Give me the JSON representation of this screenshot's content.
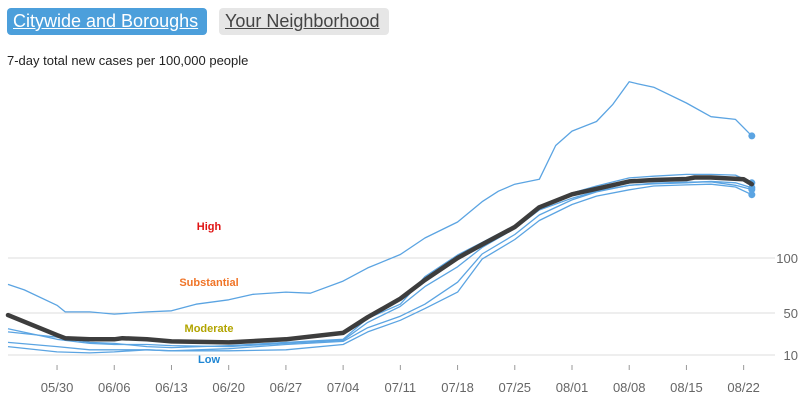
{
  "tabs": [
    {
      "label": "Citywide and Boroughs",
      "active": true
    },
    {
      "label": "Your Neighborhood",
      "active": false
    }
  ],
  "subtitle": "7-day total new cases per 100,000 people",
  "colors": {
    "accent": "#4c9fdb",
    "citywide": "#3d3d3d",
    "borough": "#5ba4e2",
    "grid": "#dddddd",
    "high": "#e01414",
    "substantial": "#f07427",
    "moderate": "#b2a400",
    "low": "#1f86d3"
  },
  "chart_data": {
    "type": "line",
    "x_ticks": [
      "05/30",
      "06/06",
      "06/13",
      "06/20",
      "06/27",
      "07/04",
      "07/11",
      "07/18",
      "07/25",
      "08/01",
      "08/08",
      "08/15",
      "08/22"
    ],
    "x_tick_days": [
      6,
      13,
      20,
      27,
      34,
      41,
      48,
      55,
      62,
      69,
      76,
      83,
      90
    ],
    "x_range_days": [
      0,
      92
    ],
    "y_ticks": [
      10,
      50,
      100
    ],
    "y_range": [
      0,
      330
    ],
    "grid": true,
    "level_labels": [
      {
        "label": "High",
        "color": "high"
      },
      {
        "label": "Substantial",
        "color": "substantial"
      },
      {
        "label": "Moderate",
        "color": "moderate"
      },
      {
        "label": "Low",
        "color": "low"
      }
    ],
    "citywide": {
      "days": [
        0,
        6,
        7,
        10,
        13,
        14,
        17,
        20,
        27,
        34,
        41,
        44,
        48,
        51,
        55,
        58,
        62,
        65,
        69,
        72,
        76,
        79,
        83,
        84,
        86,
        90,
        91
      ],
      "values": [
        48,
        29,
        26,
        25,
        25,
        26,
        25,
        23,
        22,
        25,
        31,
        46,
        63,
        80,
        100,
        127,
        162,
        202,
        239,
        255,
        276,
        280,
        283,
        287,
        287,
        282,
        268
      ]
    },
    "boroughs": [
      {
        "days": [
          0,
          2,
          6,
          7,
          10,
          13,
          17,
          20,
          23,
          27,
          30,
          34,
          37,
          41,
          44,
          48,
          51,
          55,
          58,
          60,
          62,
          65,
          67,
          69,
          72,
          74,
          76,
          77,
          79,
          83,
          86,
          89,
          91
        ],
        "values": [
          76,
          71,
          57,
          51,
          51,
          49,
          51,
          52,
          58,
          62,
          67,
          69,
          68,
          79,
          91,
          107,
          140,
          172,
          218,
          248,
          268,
          282,
          340,
          361,
          375,
          400,
          433,
          430,
          425,
          402,
          382,
          378,
          354
        ]
      },
      {
        "days": [
          0,
          6,
          10,
          13,
          17,
          20,
          27,
          34,
          41,
          44,
          48,
          51,
          55,
          58,
          62,
          65,
          69,
          72,
          76,
          79,
          83,
          86,
          89,
          91
        ],
        "values": [
          32,
          27,
          22,
          21,
          18,
          17,
          19,
          22,
          25,
          45,
          58,
          83,
          106,
          131,
          165,
          205,
          243,
          263,
          286,
          291,
          296,
          296,
          294,
          272
        ]
      },
      {
        "days": [
          0,
          6,
          10,
          13,
          17,
          20,
          27,
          34,
          41,
          44,
          48,
          51,
          55,
          58,
          62,
          65,
          69,
          72,
          76,
          79,
          83,
          86,
          89,
          91
        ],
        "values": [
          35,
          25,
          21,
          20,
          20,
          19,
          18,
          21,
          24,
          41,
          56,
          74,
          92,
          121,
          159,
          196,
          228,
          248,
          265,
          271,
          274,
          275,
          265,
          253
        ]
      },
      {
        "days": [
          0,
          6,
          10,
          13,
          17,
          20,
          27,
          34,
          41,
          44,
          48,
          51,
          55,
          58,
          62,
          65,
          69,
          72,
          76,
          79,
          83,
          86,
          89,
          91
        ],
        "values": [
          22,
          18,
          15,
          15,
          15,
          14,
          16,
          20,
          23,
          36,
          47,
          58,
          78,
          108,
          147,
          186,
          223,
          246,
          265,
          269,
          272,
          276,
          272,
          258
        ]
      },
      {
        "days": [
          0,
          6,
          10,
          13,
          17,
          20,
          27,
          34,
          41,
          44,
          48,
          51,
          55,
          58,
          62,
          65,
          69,
          72,
          76,
          79,
          83,
          86,
          89,
          91
        ],
        "values": [
          18,
          13,
          12,
          13,
          15,
          14,
          14,
          15,
          20,
          32,
          43,
          54,
          69,
          99,
          137,
          175,
          210,
          234,
          252,
          263,
          266,
          268,
          260,
          238
        ]
      }
    ]
  }
}
